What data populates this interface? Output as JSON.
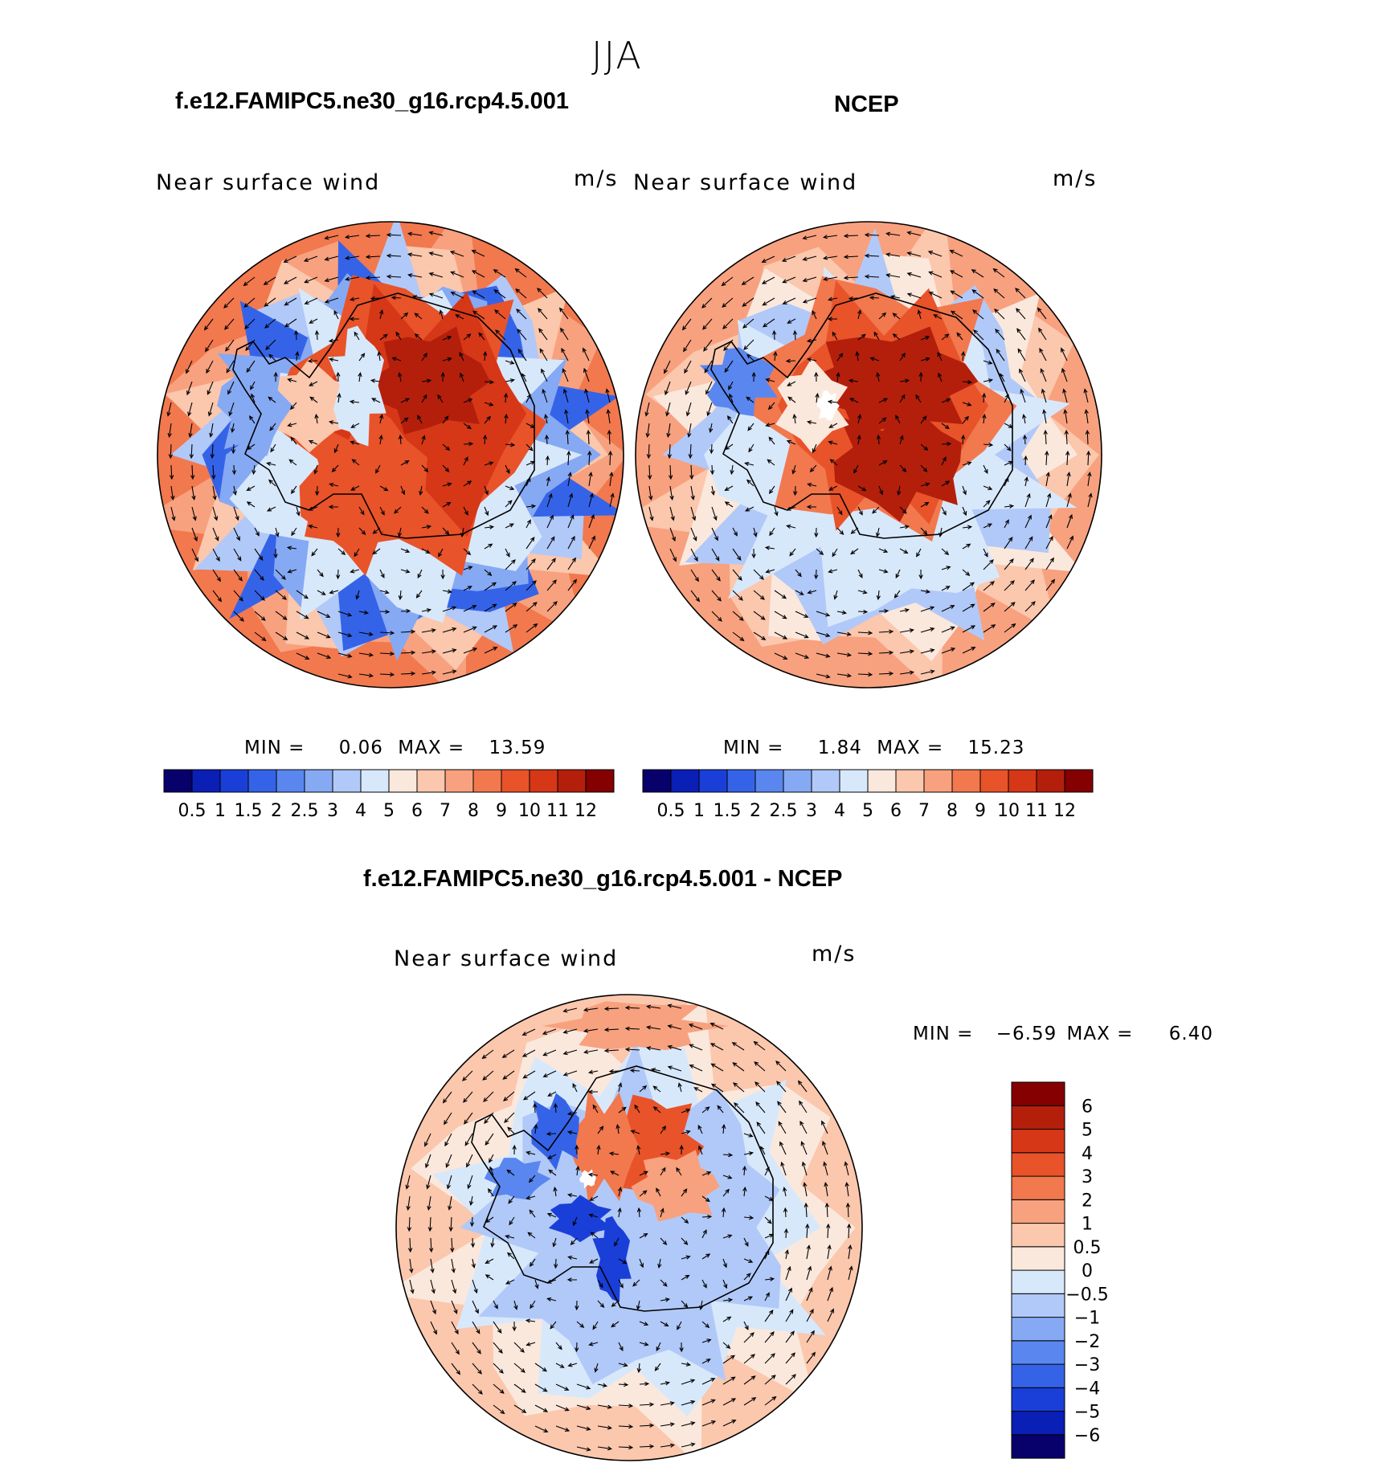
{
  "figure": {
    "season": "JJA"
  },
  "panels": [
    {
      "id": "model",
      "title": "f.e12.FAMIPC5.ne30_g16.rcp4.5.001",
      "variable": "Near surface wind",
      "units": "m/s",
      "min_label": "MIN =",
      "min": "0.06",
      "max_label": "MAX =",
      "max": "13.59"
    },
    {
      "id": "obs",
      "title": "NCEP",
      "variable": "Near surface wind",
      "units": "m/s",
      "min_label": "MIN =",
      "min": "1.84",
      "max_label": "MAX =",
      "max": "15.23"
    },
    {
      "id": "diff",
      "title": "f.e12.FAMIPC5.ne30_g16.rcp4.5.001 - NCEP",
      "variable": "Near surface wind",
      "units": "m/s",
      "min_label": "MIN =",
      "min": "−6.59",
      "max_label": "MAX =",
      "max": "6.40"
    }
  ],
  "colorbars": {
    "speed": {
      "colors": [
        "#08006b",
        "#0a1fb5",
        "#1a3fd8",
        "#3563e8",
        "#5a87ef",
        "#86a9f3",
        "#b1c9f8",
        "#d8e8fb",
        "#fbe8dc",
        "#fbc7ad",
        "#f8a17f",
        "#f2784e",
        "#e8532a",
        "#d63717",
        "#b41f0c",
        "#850000"
      ],
      "labels": [
        "0.5",
        "1",
        "1.5",
        "2",
        "2.5",
        "3",
        "4",
        "5",
        "6",
        "7",
        "8",
        "9",
        "10",
        "11",
        "12"
      ]
    },
    "diff": {
      "colors": [
        "#08006b",
        "#0a1fb5",
        "#1a3fd8",
        "#3563e8",
        "#5a87ef",
        "#86a9f3",
        "#b1c9f8",
        "#d8e8fb",
        "#fbe8dc",
        "#fbc7ad",
        "#f8a17f",
        "#f2784e",
        "#e8532a",
        "#d63717",
        "#b41f0c",
        "#850000"
      ],
      "labels": [
        "−6",
        "−5",
        "−4",
        "−3",
        "−2",
        "−1",
        "−0.5",
        "0",
        "0.5",
        "1",
        "2",
        "3",
        "4",
        "5",
        "6"
      ]
    }
  }
}
